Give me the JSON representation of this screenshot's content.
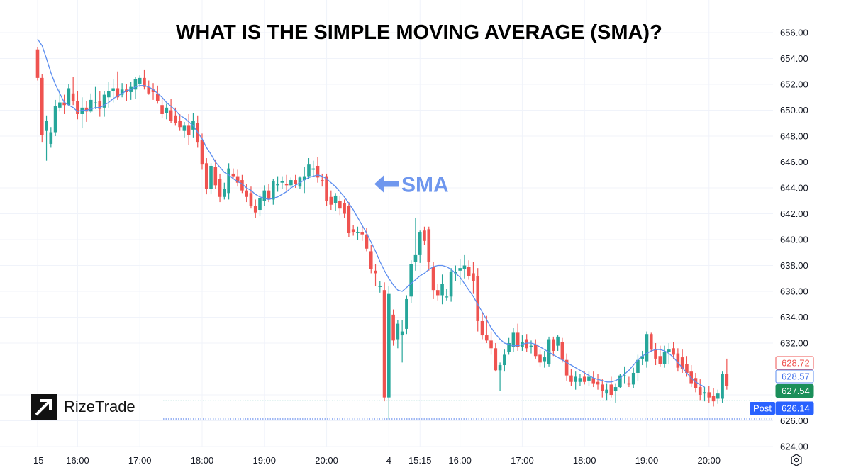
{
  "title": "WHAT IS THE SIMPLE MOVING AVERAGE (SMA)?",
  "brand": {
    "name": "RizeTrade"
  },
  "colors": {
    "up": "#26a69a",
    "down": "#ef5350",
    "sma": "#5b8def",
    "annotation": "#6f97ee",
    "grid": "#f0f3fa",
    "axis_text": "#131722"
  },
  "chart_data": {
    "type": "candlestick",
    "title": "WHAT IS THE SIMPLE MOVING AVERAGE (SMA)?",
    "ylim": [
      623.5,
      656.5
    ],
    "y_ticks": [
      624,
      626,
      628,
      630,
      632,
      634,
      636,
      638,
      640,
      642,
      644,
      646,
      648,
      650,
      652,
      654,
      656
    ],
    "y_tick_labels": [
      "624.00",
      "626.00",
      "628.00",
      "630.00",
      "632.00",
      "634.00",
      "636.00",
      "638.00",
      "640.00",
      "642.00",
      "644.00",
      "646.00",
      "648.00",
      "650.00",
      "652.00",
      "654.00",
      "656.00"
    ],
    "x_ticks": [
      {
        "label": "15",
        "i": 0
      },
      {
        "label": "16:00",
        "i": 9
      },
      {
        "label": "17:00",
        "i": 23
      },
      {
        "label": "18:00",
        "i": 37
      },
      {
        "label": "19:00",
        "i": 51
      },
      {
        "label": "20:00",
        "i": 65
      },
      {
        "label": "4",
        "i": 79
      },
      {
        "label": "15:15",
        "i": 86
      },
      {
        "label": "16:00",
        "i": 95
      },
      {
        "label": "17:00",
        "i": 109
      },
      {
        "label": "18:00",
        "i": 123
      },
      {
        "label": "19:00",
        "i": 137
      },
      {
        "label": "20:00",
        "i": 151
      }
    ],
    "annotation": {
      "label": "SMA",
      "price": 644.3
    },
    "price_labels": [
      {
        "value": "628.72",
        "price": 628.72,
        "style": "red-outline"
      },
      {
        "value": "628.57",
        "price": 628.57,
        "style": "blue-outline"
      },
      {
        "value": "627.54",
        "price": 627.54,
        "style": "green"
      },
      {
        "value": "626.14",
        "price": 626.14,
        "style": "blue",
        "tag": "Post"
      }
    ],
    "ohlc": [
      [
        654.7,
        654.9,
        652.3,
        652.5
      ],
      [
        652.5,
        652.8,
        647.5,
        648.1
      ],
      [
        648.4,
        649.6,
        646.1,
        649.2
      ],
      [
        647.4,
        648.7,
        647.1,
        648.3
      ],
      [
        648.3,
        650.8,
        648.0,
        650.3
      ],
      [
        650.2,
        651.6,
        649.9,
        650.6
      ],
      [
        650.6,
        651.2,
        649.7,
        650.4
      ],
      [
        650.4,
        652.0,
        650.3,
        651.7
      ],
      [
        651.3,
        652.6,
        650.4,
        650.7
      ],
      [
        650.7,
        651.5,
        649.3,
        649.7
      ],
      [
        649.7,
        651.0,
        648.6,
        650.2
      ],
      [
        650.2,
        650.7,
        649.1,
        649.9
      ],
      [
        649.9,
        651.3,
        649.8,
        650.8
      ],
      [
        650.6,
        651.8,
        650.1,
        650.6
      ],
      [
        650.7,
        651.5,
        649.5,
        650.1
      ],
      [
        650.2,
        651.5,
        649.5,
        651.2
      ],
      [
        651.0,
        652.2,
        650.2,
        651.5
      ],
      [
        651.5,
        652.4,
        650.6,
        651.7
      ],
      [
        651.7,
        653.0,
        650.8,
        651.0
      ],
      [
        651.2,
        652.1,
        651.0,
        651.6
      ],
      [
        651.6,
        652.0,
        650.7,
        651.4
      ],
      [
        651.4,
        652.2,
        650.8,
        651.8
      ],
      [
        651.6,
        652.6,
        650.9,
        652.4
      ],
      [
        652.0,
        652.7,
        651.8,
        652.5
      ],
      [
        652.5,
        653.1,
        651.6,
        651.8
      ],
      [
        651.8,
        652.3,
        651.2,
        651.3
      ],
      [
        651.6,
        652.1,
        650.8,
        651.4
      ],
      [
        651.3,
        651.9,
        650.5,
        650.7
      ],
      [
        650.4,
        650.9,
        649.4,
        649.7
      ],
      [
        649.8,
        650.5,
        649.3,
        650.2
      ],
      [
        650.0,
        650.9,
        649.0,
        649.2
      ],
      [
        649.6,
        650.2,
        648.8,
        649.0
      ],
      [
        649.2,
        649.7,
        648.4,
        648.7
      ],
      [
        648.4,
        649.1,
        647.9,
        648.8
      ],
      [
        648.8,
        649.7,
        647.3,
        648.1
      ],
      [
        648.5,
        649.8,
        647.9,
        649.2
      ],
      [
        649.0,
        649.6,
        647.1,
        647.5
      ],
      [
        647.7,
        648.2,
        645.4,
        645.8
      ],
      [
        645.9,
        646.3,
        643.5,
        643.9
      ],
      [
        643.9,
        645.9,
        643.5,
        645.7
      ],
      [
        645.6,
        646.2,
        643.9,
        644.2
      ],
      [
        644.7,
        645.1,
        642.9,
        643.3
      ],
      [
        643.3,
        644.4,
        643.1,
        643.9
      ],
      [
        643.6,
        645.9,
        643.1,
        645.5
      ],
      [
        645.1,
        645.5,
        644.7,
        644.9
      ],
      [
        644.9,
        645.4,
        644.1,
        644.4
      ],
      [
        644.6,
        645.0,
        643.6,
        643.8
      ],
      [
        643.8,
        644.3,
        642.9,
        643.3
      ],
      [
        643.6,
        644.1,
        642.4,
        642.6
      ],
      [
        642.6,
        643.1,
        641.7,
        642.1
      ],
      [
        642.3,
        643.5,
        641.8,
        643.2
      ],
      [
        643.0,
        644.2,
        642.6,
        643.8
      ],
      [
        643.8,
        644.3,
        642.9,
        643.1
      ],
      [
        643.1,
        644.7,
        642.7,
        644.5
      ],
      [
        644.2,
        644.9,
        643.7,
        644.3
      ],
      [
        644.4,
        644.9,
        643.9,
        644.5
      ],
      [
        644.3,
        645.0,
        643.8,
        644.2
      ],
      [
        644.2,
        644.8,
        643.9,
        644.6
      ],
      [
        644.6,
        645.0,
        644.0,
        644.3
      ],
      [
        644.1,
        644.9,
        643.9,
        644.8
      ],
      [
        644.6,
        645.6,
        643.6,
        644.9
      ],
      [
        644.9,
        646.3,
        644.7,
        645.8
      ],
      [
        645.4,
        646.1,
        644.9,
        645.5
      ],
      [
        645.7,
        646.4,
        644.4,
        644.8
      ],
      [
        644.6,
        645.1,
        644.1,
        644.5
      ],
      [
        644.9,
        645.1,
        642.6,
        643.0
      ],
      [
        643.3,
        643.8,
        642.3,
        642.7
      ],
      [
        642.8,
        643.6,
        642.2,
        643.4
      ],
      [
        643.0,
        643.4,
        641.9,
        642.4
      ],
      [
        642.8,
        643.1,
        641.7,
        642.0
      ],
      [
        642.6,
        642.9,
        640.2,
        640.5
      ],
      [
        640.8,
        641.1,
        640.3,
        640.6
      ],
      [
        640.5,
        641.0,
        640.0,
        640.6
      ],
      [
        640.6,
        641.0,
        639.9,
        640.4
      ],
      [
        640.4,
        640.9,
        639.1,
        639.3
      ],
      [
        639.1,
        639.6,
        637.4,
        637.7
      ],
      [
        637.6,
        638.1,
        636.4,
        637.4
      ],
      [
        636.4,
        636.8,
        635.9,
        636.4
      ],
      [
        636.1,
        636.7,
        627.5,
        627.8
      ],
      [
        627.8,
        636.4,
        626.1,
        635.8
      ],
      [
        634.2,
        634.6,
        631.8,
        632.2
      ],
      [
        632.3,
        633.8,
        631.6,
        633.5
      ],
      [
        632.6,
        633.8,
        630.5,
        632.9
      ],
      [
        633.1,
        635.7,
        632.7,
        635.4
      ],
      [
        635.6,
        638.4,
        635.1,
        638.1
      ],
      [
        638.3,
        641.7,
        637.6,
        638.8
      ],
      [
        638.8,
        640.7,
        638.2,
        640.6
      ],
      [
        640.7,
        641.0,
        639.6,
        639.9
      ],
      [
        640.8,
        641.0,
        637.6,
        638.3
      ],
      [
        637.9,
        638.3,
        635.4,
        636.1
      ],
      [
        636.1,
        636.6,
        635.3,
        635.7
      ],
      [
        635.7,
        637.3,
        635.0,
        636.6
      ],
      [
        635.6,
        636.2,
        635.3,
        635.6
      ],
      [
        635.6,
        637.8,
        635.2,
        637.5
      ],
      [
        637.4,
        638.0,
        636.8,
        637.5
      ],
      [
        637.6,
        638.5,
        636.5,
        637.8
      ],
      [
        637.7,
        638.8,
        637.0,
        638.0
      ],
      [
        637.9,
        638.4,
        636.9,
        637.2
      ],
      [
        637.4,
        638.3,
        635.8,
        636.8
      ],
      [
        637.2,
        637.8,
        632.9,
        633.7
      ],
      [
        633.7,
        634.4,
        632.3,
        632.6
      ],
      [
        632.6,
        634.1,
        632.0,
        632.2
      ],
      [
        632.2,
        632.9,
        631.1,
        631.6
      ],
      [
        631.6,
        632.0,
        629.8,
        629.9
      ],
      [
        629.9,
        630.5,
        628.3,
        630.3
      ],
      [
        630.3,
        631.5,
        629.8,
        631.1
      ],
      [
        631.3,
        632.4,
        631.1,
        632.0
      ],
      [
        631.7,
        633.2,
        631.3,
        632.8
      ],
      [
        632.8,
        633.5,
        631.4,
        631.7
      ],
      [
        631.7,
        632.6,
        631.4,
        632.1
      ],
      [
        632.3,
        632.7,
        631.3,
        631.6
      ],
      [
        631.7,
        632.2,
        631.2,
        631.8
      ],
      [
        631.9,
        632.3,
        630.8,
        631.0
      ],
      [
        631.1,
        631.5,
        630.2,
        630.5
      ],
      [
        630.6,
        631.4,
        630.1,
        630.9
      ],
      [
        630.4,
        632.5,
        630.2,
        632.3
      ],
      [
        632.3,
        632.5,
        631.0,
        631.4
      ],
      [
        631.8,
        632.6,
        631.4,
        632.5
      ],
      [
        632.1,
        632.4,
        630.5,
        630.7
      ],
      [
        630.7,
        631.2,
        629.1,
        629.5
      ],
      [
        629.5,
        630.0,
        628.7,
        629.0
      ],
      [
        629.0,
        629.8,
        628.4,
        629.4
      ],
      [
        629.0,
        629.6,
        628.7,
        629.3
      ],
      [
        629.4,
        629.8,
        628.8,
        629.0
      ],
      [
        629.1,
        629.8,
        628.7,
        629.4
      ],
      [
        629.3,
        629.8,
        628.6,
        628.9
      ],
      [
        629.0,
        629.6,
        628.4,
        628.8
      ],
      [
        628.8,
        629.2,
        627.8,
        628.3
      ],
      [
        628.1,
        628.9,
        627.6,
        628.4
      ],
      [
        628.8,
        629.4,
        627.8,
        628.0
      ],
      [
        628.3,
        628.9,
        627.4,
        628.6
      ],
      [
        628.6,
        629.6,
        628.5,
        629.5
      ],
      [
        629.5,
        630.2,
        628.9,
        629.5
      ],
      [
        628.9,
        629.4,
        628.6,
        628.8
      ],
      [
        628.8,
        630.1,
        628.5,
        629.7
      ],
      [
        629.7,
        631.1,
        629.1,
        630.7
      ],
      [
        630.8,
        631.4,
        630.3,
        631.0
      ],
      [
        630.6,
        632.9,
        630.1,
        632.7
      ],
      [
        632.7,
        632.8,
        631.3,
        631.5
      ],
      [
        631.5,
        632.0,
        630.3,
        630.8
      ],
      [
        631.0,
        631.8,
        630.2,
        630.4
      ],
      [
        630.4,
        631.8,
        630.1,
        631.3
      ],
      [
        631.3,
        632.0,
        630.4,
        631.5
      ],
      [
        631.6,
        632.1,
        630.8,
        631.1
      ],
      [
        631.2,
        631.6,
        629.8,
        630.1
      ],
      [
        630.9,
        631.5,
        629.7,
        630.0
      ],
      [
        630.4,
        631.0,
        629.4,
        629.7
      ],
      [
        629.8,
        630.3,
        628.6,
        628.9
      ],
      [
        629.3,
        629.7,
        628.2,
        628.5
      ],
      [
        628.6,
        629.2,
        627.6,
        628.0
      ],
      [
        628.1,
        628.6,
        627.5,
        628.2
      ],
      [
        628.2,
        628.7,
        627.4,
        627.8
      ],
      [
        627.9,
        628.5,
        627.1,
        627.5
      ],
      [
        627.7,
        628.4,
        627.3,
        628.1
      ],
      [
        627.7,
        629.8,
        627.4,
        629.6
      ],
      [
        629.6,
        630.8,
        628.4,
        628.7
      ]
    ],
    "sma": [
      655.5,
      655.0,
      654.0,
      652.9,
      652.0,
      651.3,
      650.6,
      650.4,
      650.2,
      649.9,
      650.0,
      650.0,
      650.1,
      650.2,
      650.2,
      650.4,
      650.6,
      650.9,
      651.1,
      651.3,
      651.5,
      651.6,
      651.8,
      651.9,
      651.9,
      651.8,
      651.6,
      651.3,
      651.0,
      650.6,
      650.3,
      650.0,
      649.6,
      649.4,
      649.1,
      648.8,
      648.3,
      647.8,
      647.1,
      646.6,
      646.0,
      645.6,
      645.2,
      645.0,
      644.7,
      644.5,
      644.3,
      644.0,
      643.8,
      643.5,
      643.3,
      643.2,
      643.1,
      643.2,
      643.3,
      643.5,
      643.7,
      644.0,
      644.2,
      644.4,
      644.6,
      644.8,
      644.9,
      645.0,
      644.9,
      644.7,
      644.4,
      644.1,
      643.7,
      643.3,
      642.8,
      642.3,
      641.7,
      641.1,
      640.5,
      639.8,
      639.1,
      638.3,
      637.6,
      637.0,
      636.5,
      636.1,
      636.0,
      636.3,
      636.6,
      636.9,
      637.2,
      637.4,
      637.7,
      637.9,
      638.0,
      638.0,
      637.9,
      637.7,
      637.4,
      637.1,
      636.6,
      636.1,
      635.6,
      635.0,
      634.4,
      633.8,
      633.2,
      632.7,
      632.3,
      632.0,
      631.9,
      631.8,
      631.8,
      631.9,
      632.0,
      632.0,
      631.9,
      631.7,
      631.5,
      631.3,
      631.1,
      630.9,
      630.7,
      630.5,
      630.3,
      630.1,
      629.9,
      629.7,
      629.5,
      629.3,
      629.2,
      629.1,
      629.0,
      629.0,
      629.1,
      629.3,
      629.6,
      629.9,
      630.3,
      630.7,
      631.0,
      631.2,
      631.4,
      631.5,
      631.5,
      631.4,
      631.2,
      630.9,
      630.5,
      630.1,
      629.7,
      629.3,
      629.0,
      628.8,
      628.6
    ]
  }
}
